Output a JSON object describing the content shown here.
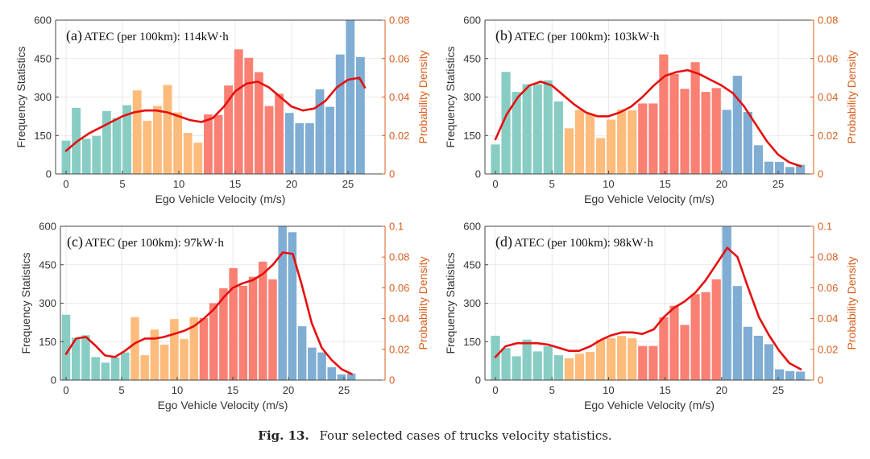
{
  "figure": {
    "caption_label": "Fig. 13.",
    "caption_text": "Four selected cases of trucks velocity statistics.",
    "colors": {
      "teal": "#88cdc4",
      "orange": "#fdbb7c",
      "red": "#f98073",
      "blue": "#7fadd3",
      "density_line": "#e60f0f",
      "right_axis": "#d95f1e",
      "left_axis": "#333333"
    }
  },
  "chart_data": [
    {
      "id": "a",
      "type": "bar+line",
      "panel_label": "(a)",
      "title": "ATEC (per 100km): 114kW·h",
      "xlabel": "Ego Vehicle Velocity (m/s)",
      "ylabel": "Frequency Statistics",
      "ylabel_right": "Probability Density",
      "xlim": [
        -1,
        28
      ],
      "ylim": [
        0,
        600
      ],
      "ylim_right": [
        0,
        0.08
      ],
      "xticks": [
        0,
        5,
        10,
        15,
        20,
        25
      ],
      "yticks": [
        0,
        150,
        300,
        450,
        600
      ],
      "yticks_right": [
        "0",
        "0.02",
        "0.04",
        "0.06",
        "0.08"
      ],
      "yticks_right_values": [
        0,
        0.02,
        0.04,
        0.06,
        0.08
      ],
      "grid": true,
      "bar_x_step": 0.9,
      "bar_groups": [
        7,
        7,
        8,
        8
      ],
      "values": [
        130,
        258,
        137,
        148,
        245,
        218,
        268,
        326,
        207,
        265,
        347,
        240,
        160,
        122,
        232,
        230,
        345,
        486,
        453,
        397,
        265,
        313,
        238,
        198,
        198,
        330,
        262,
        466,
        600,
        456
      ],
      "density": {
        "x": [
          0,
          1,
          2,
          3,
          4,
          5,
          6,
          7,
          8,
          9,
          10,
          11,
          12,
          13,
          14,
          15,
          16,
          17,
          18,
          19,
          20,
          21,
          22,
          23,
          24,
          25,
          26,
          26.5
        ],
        "y": [
          0.012,
          0.017,
          0.021,
          0.024,
          0.027,
          0.03,
          0.032,
          0.033,
          0.033,
          0.032,
          0.03,
          0.028,
          0.027,
          0.029,
          0.035,
          0.043,
          0.047,
          0.048,
          0.045,
          0.04,
          0.035,
          0.033,
          0.034,
          0.038,
          0.045,
          0.049,
          0.05,
          0.045
        ]
      }
    },
    {
      "id": "b",
      "type": "bar+line",
      "panel_label": "(b)",
      "title": "ATEC (per 100km): 103kW·h",
      "xlabel": "Ego Vehicle Velocity (m/s)",
      "ylabel": "Frequency Statistics",
      "ylabel_right": "Probability Density",
      "xlim": [
        -1,
        28
      ],
      "ylim": [
        0,
        600
      ],
      "ylim_right": [
        0,
        0.08
      ],
      "xticks": [
        0,
        5,
        10,
        15,
        20,
        25
      ],
      "yticks": [
        0,
        150,
        300,
        450,
        600
      ],
      "yticks_right": [
        "0",
        "0.02",
        "0.04",
        "0.06",
        "0.08"
      ],
      "yticks_right_values": [
        0,
        0.02,
        0.04,
        0.06,
        0.08
      ],
      "grid": true,
      "bar_x_step": 0.93,
      "bar_groups": [
        7,
        7,
        8,
        8
      ],
      "values": [
        115,
        398,
        320,
        350,
        350,
        365,
        283,
        178,
        250,
        235,
        140,
        212,
        252,
        248,
        275,
        275,
        466,
        390,
        332,
        436,
        320,
        335,
        250,
        383,
        242,
        112,
        48,
        47,
        27,
        36
      ],
      "density": {
        "x": [
          0,
          1,
          2,
          3,
          4,
          5,
          6,
          7,
          8,
          9,
          10,
          11,
          12,
          13,
          14,
          15,
          16,
          17,
          18,
          19,
          20,
          21,
          22,
          23,
          24,
          25,
          26,
          27
        ],
        "y": [
          0.018,
          0.031,
          0.04,
          0.046,
          0.048,
          0.046,
          0.041,
          0.036,
          0.032,
          0.03,
          0.03,
          0.032,
          0.035,
          0.04,
          0.046,
          0.051,
          0.053,
          0.054,
          0.052,
          0.049,
          0.046,
          0.042,
          0.035,
          0.026,
          0.017,
          0.01,
          0.006,
          0.004
        ]
      }
    },
    {
      "id": "c",
      "type": "bar+line",
      "panel_label": "(c)",
      "title": "ATEC (per 100km): 97kW·h",
      "xlabel": "Ego Vehicle Velocity (m/s)",
      "ylabel": "Frequency Statistics",
      "ylabel_right": "Probability Density",
      "xlim": [
        -0.5,
        27
      ],
      "ylim": [
        0,
        600
      ],
      "ylim_right": [
        0,
        0.1
      ],
      "xticks": [
        0,
        5,
        10,
        15,
        20,
        25
      ],
      "yticks": [
        0,
        150,
        300,
        450,
        600
      ],
      "yticks_right": [
        "0",
        "0.02",
        "0.04",
        "0.06",
        "0.08",
        "0.1"
      ],
      "yticks_right_values": [
        0,
        0.02,
        0.04,
        0.06,
        0.08,
        0.1
      ],
      "grid": true,
      "bar_x_step": 0.885,
      "bar_groups": [
        7,
        7,
        8,
        8
      ],
      "values": [
        255,
        165,
        175,
        90,
        68,
        88,
        108,
        245,
        97,
        197,
        138,
        238,
        160,
        245,
        242,
        300,
        358,
        437,
        368,
        403,
        462,
        393,
        600,
        577,
        210,
        127,
        108,
        50,
        22,
        25
      ],
      "density": {
        "x": [
          0,
          0.9,
          1.8,
          2.7,
          3.5,
          4.4,
          5.3,
          6.2,
          7.1,
          8.0,
          8.8,
          9.7,
          10.6,
          11.5,
          12.4,
          13.3,
          14.2,
          15.0,
          15.9,
          16.8,
          17.7,
          18.6,
          19.5,
          20.4,
          21.2,
          22.1,
          23.0,
          23.9,
          24.8,
          25.7
        ],
        "y": [
          0.017,
          0.027,
          0.028,
          0.022,
          0.016,
          0.015,
          0.019,
          0.024,
          0.027,
          0.027,
          0.028,
          0.03,
          0.032,
          0.035,
          0.04,
          0.046,
          0.054,
          0.06,
          0.063,
          0.065,
          0.069,
          0.075,
          0.083,
          0.082,
          0.062,
          0.037,
          0.021,
          0.013,
          0.007,
          0.004
        ]
      }
    },
    {
      "id": "d",
      "type": "bar+line",
      "panel_label": "(d)",
      "title": "ATEC (per 100km): 98kW·h",
      "xlabel": "Ego Vehicle Velocity (m/s)",
      "ylabel": "Frequency Statistics",
      "ylabel_right": "Probability Density",
      "xlim": [
        -1,
        28
      ],
      "ylim": [
        0,
        600
      ],
      "ylim_right": [
        0,
        0.1
      ],
      "xticks": [
        0,
        5,
        10,
        15,
        20,
        25
      ],
      "yticks": [
        0,
        150,
        300,
        450,
        600
      ],
      "yticks_right": [
        "0",
        "0.02",
        "0.04",
        "0.06",
        "0.08",
        "0.1"
      ],
      "yticks_right_values": [
        0,
        0.02,
        0.04,
        0.06,
        0.08,
        0.1
      ],
      "grid": true,
      "bar_x_step": 0.93,
      "bar_groups": [
        7,
        7,
        8,
        8
      ],
      "values": [
        173,
        125,
        93,
        158,
        112,
        132,
        97,
        85,
        103,
        110,
        157,
        163,
        172,
        163,
        133,
        133,
        245,
        290,
        215,
        335,
        343,
        393,
        598,
        367,
        208,
        173,
        140,
        42,
        35,
        33
      ],
      "density": {
        "x": [
          0,
          0.9,
          1.9,
          2.8,
          3.7,
          4.7,
          5.6,
          6.5,
          7.4,
          8.4,
          9.3,
          10.2,
          11.2,
          12.1,
          13.0,
          14.0,
          14.9,
          15.8,
          16.7,
          17.7,
          18.6,
          19.5,
          20.5,
          21.4,
          22.3,
          23.3,
          24.2,
          25.1,
          26.0,
          27.0
        ],
        "y": [
          0.015,
          0.022,
          0.024,
          0.024,
          0.024,
          0.023,
          0.021,
          0.019,
          0.019,
          0.022,
          0.026,
          0.029,
          0.031,
          0.031,
          0.03,
          0.033,
          0.041,
          0.047,
          0.051,
          0.057,
          0.065,
          0.075,
          0.086,
          0.08,
          0.061,
          0.041,
          0.029,
          0.019,
          0.011,
          0.007
        ]
      }
    }
  ]
}
